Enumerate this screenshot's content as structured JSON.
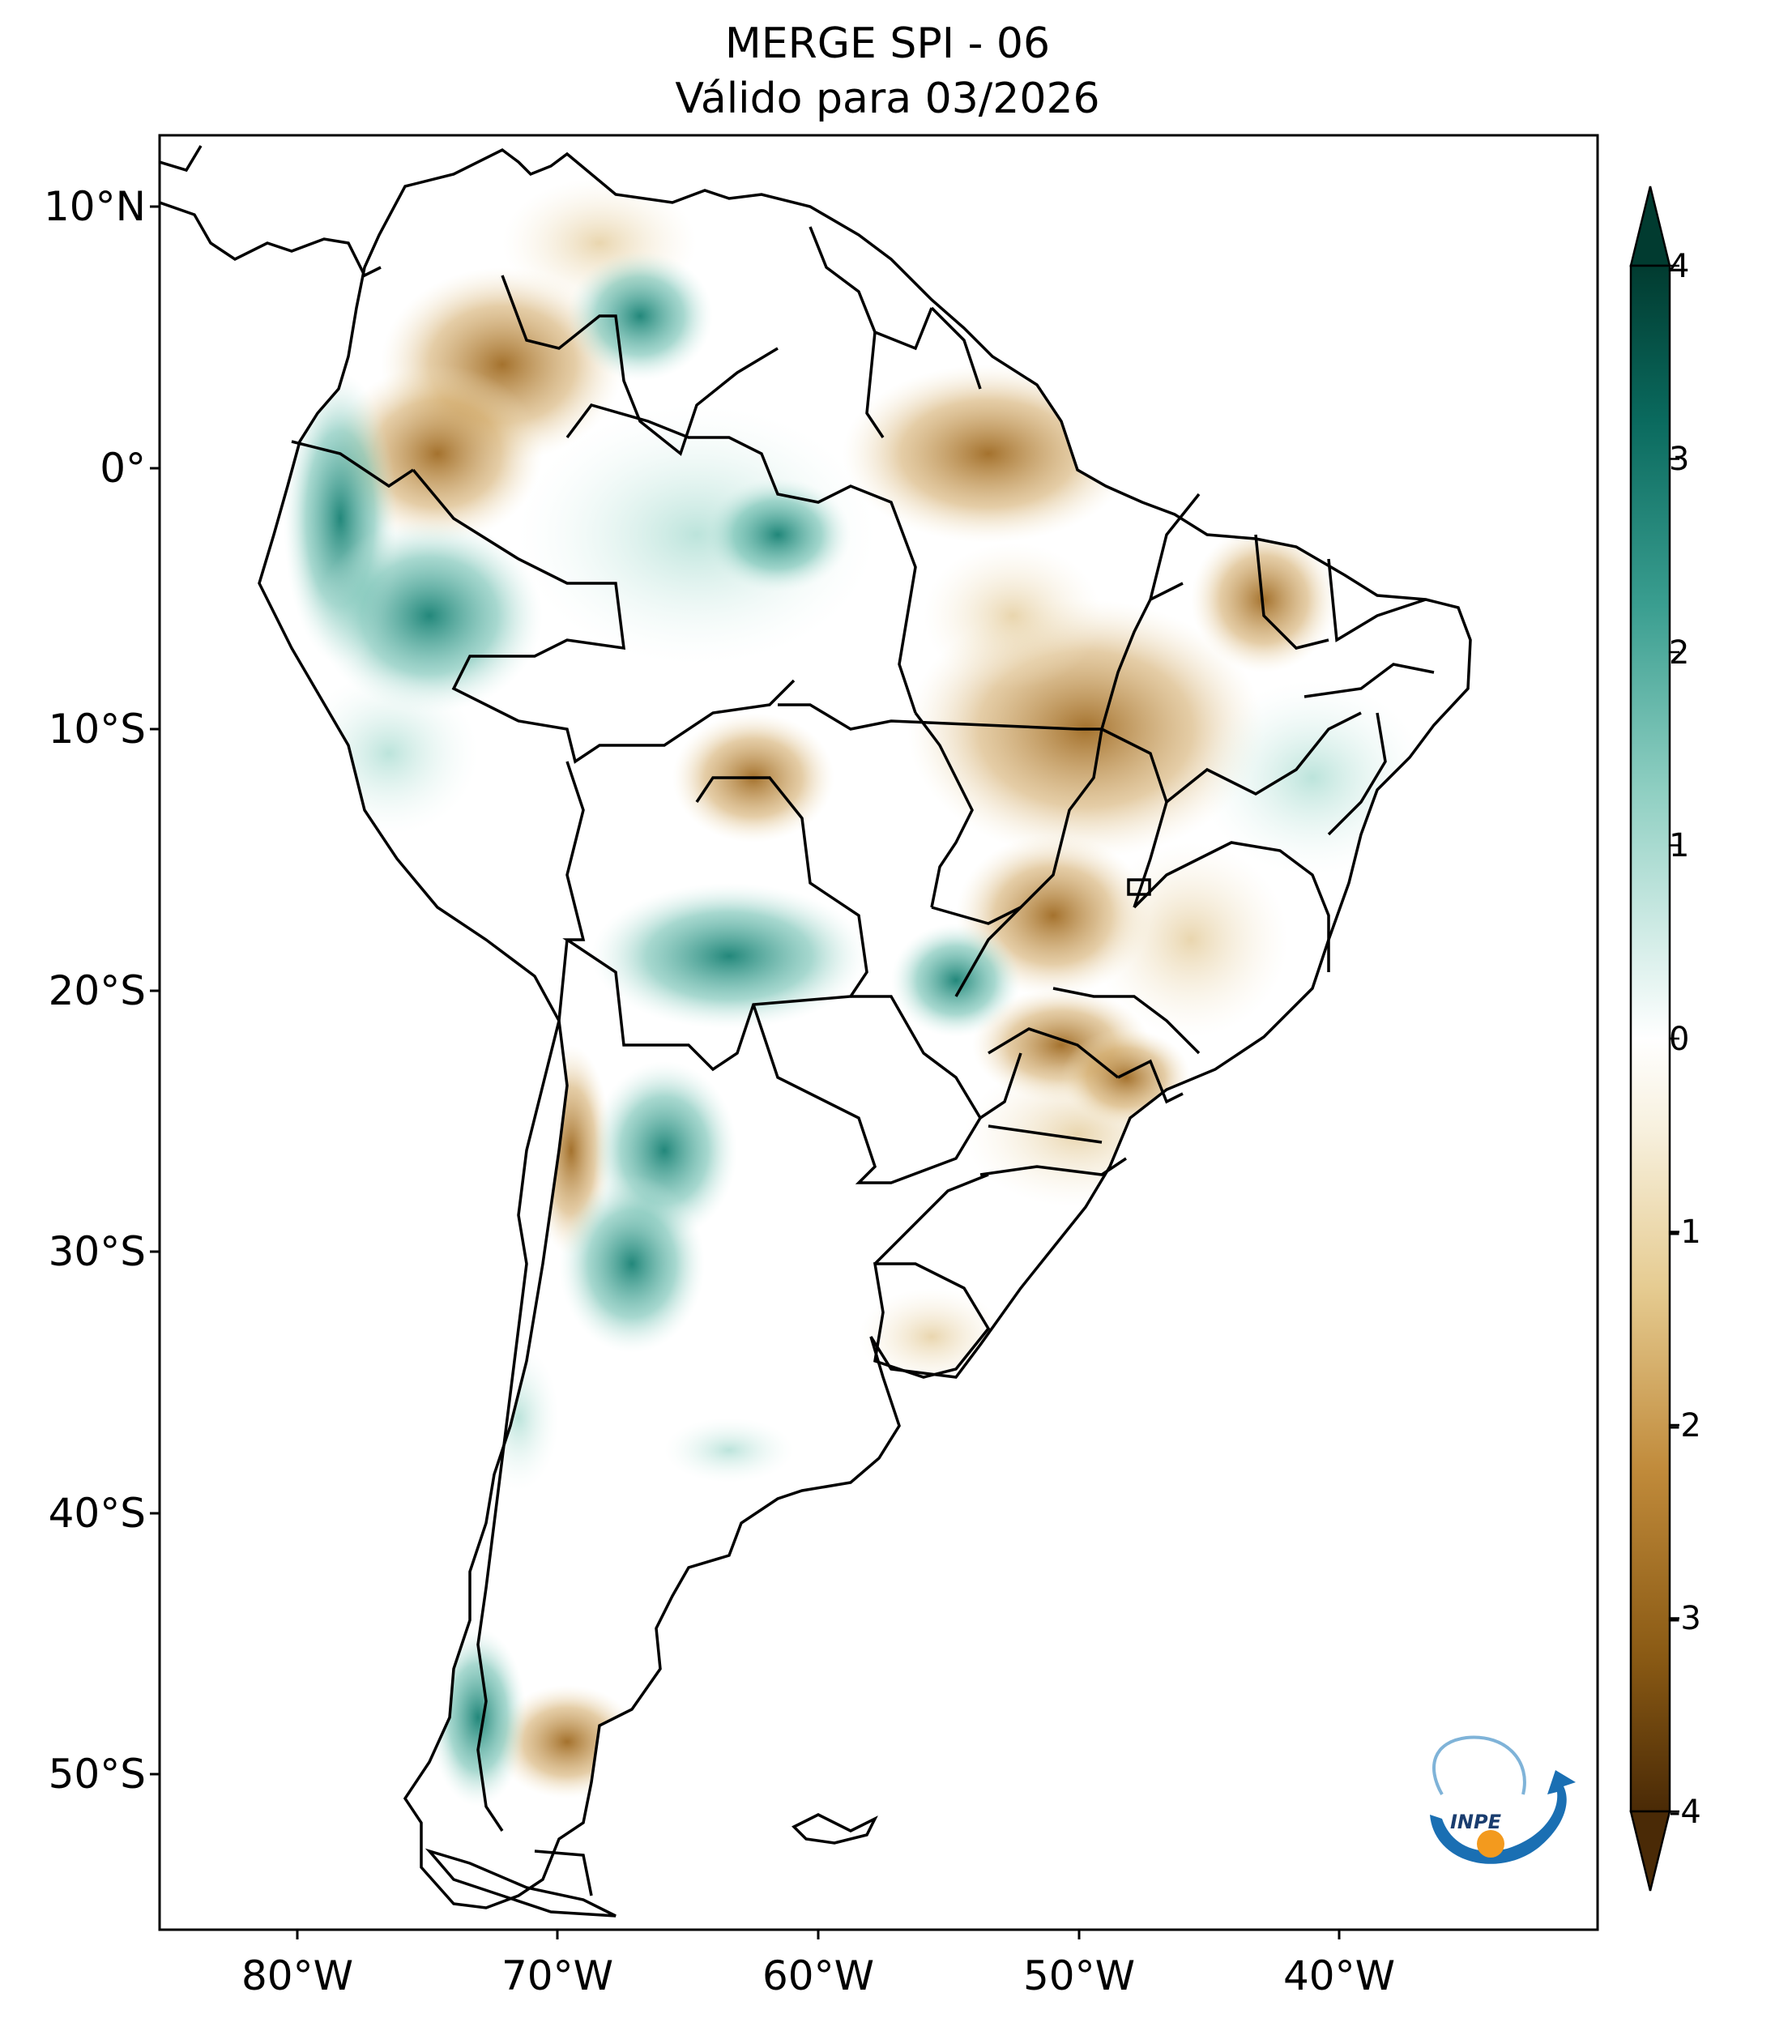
{
  "title": {
    "line1": "MERGE   SPI - 06",
    "line2": "Válido para 03/2026"
  },
  "map": {
    "lat_ticks": [
      "10°N",
      "0°",
      "10°S",
      "20°S",
      "30°S",
      "40°S",
      "50°S"
    ],
    "lon_ticks": [
      "80°W",
      "70°W",
      "60°W",
      "50°W",
      "40°W"
    ],
    "logo_text": "INPE"
  },
  "colorbar": {
    "ticks": [
      "4",
      "3",
      "2",
      "1",
      "0",
      "-1",
      "-2",
      "-3",
      "-4"
    ],
    "range": [
      -4,
      4
    ],
    "colors_dry_to_wet": [
      "#4a2a06",
      "#8a5a14",
      "#c08a3a",
      "#e6cc92",
      "#f7f0dd",
      "#ffffff",
      "#d6eee9",
      "#8fcfc2",
      "#3a9e90",
      "#0a6a5e",
      "#013b30"
    ]
  }
}
